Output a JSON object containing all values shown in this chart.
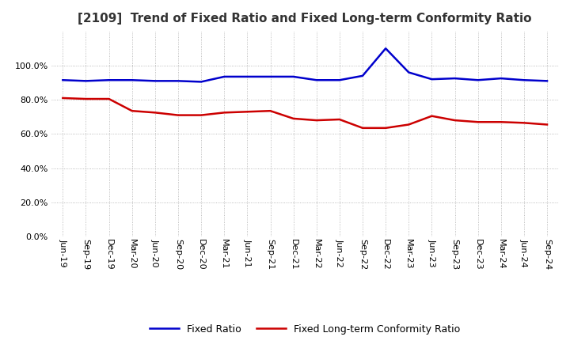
{
  "title": "[2109]  Trend of Fixed Ratio and Fixed Long-term Conformity Ratio",
  "x_labels": [
    "Jun-19",
    "Sep-19",
    "Dec-19",
    "Mar-20",
    "Jun-20",
    "Sep-20",
    "Dec-20",
    "Mar-21",
    "Jun-21",
    "Sep-21",
    "Dec-21",
    "Mar-22",
    "Jun-22",
    "Sep-22",
    "Dec-22",
    "Mar-23",
    "Jun-23",
    "Sep-23",
    "Dec-23",
    "Mar-24",
    "Jun-24",
    "Sep-24"
  ],
  "fixed_ratio": [
    91.5,
    91.0,
    91.5,
    91.5,
    91.0,
    91.0,
    90.5,
    93.5,
    93.5,
    93.5,
    93.5,
    91.5,
    91.5,
    94.0,
    110.0,
    96.0,
    92.0,
    92.5,
    91.5,
    92.5,
    91.5,
    91.0
  ],
  "fixed_lt_ratio": [
    81.0,
    80.5,
    80.5,
    73.5,
    72.5,
    71.0,
    71.0,
    72.5,
    73.0,
    73.5,
    69.0,
    68.0,
    68.5,
    63.5,
    63.5,
    65.5,
    70.5,
    68.0,
    67.0,
    67.0,
    66.5,
    65.5
  ],
  "fixed_ratio_color": "#0000cc",
  "fixed_lt_ratio_color": "#cc0000",
  "ylim": [
    0,
    120
  ],
  "yticks": [
    0,
    20,
    40,
    60,
    80,
    100
  ],
  "background_color": "#ffffff",
  "plot_bg_color": "#ffffff",
  "grid_color": "#aaaaaa",
  "title_fontsize": 11,
  "tick_fontsize": 8,
  "legend_fontsize": 9
}
